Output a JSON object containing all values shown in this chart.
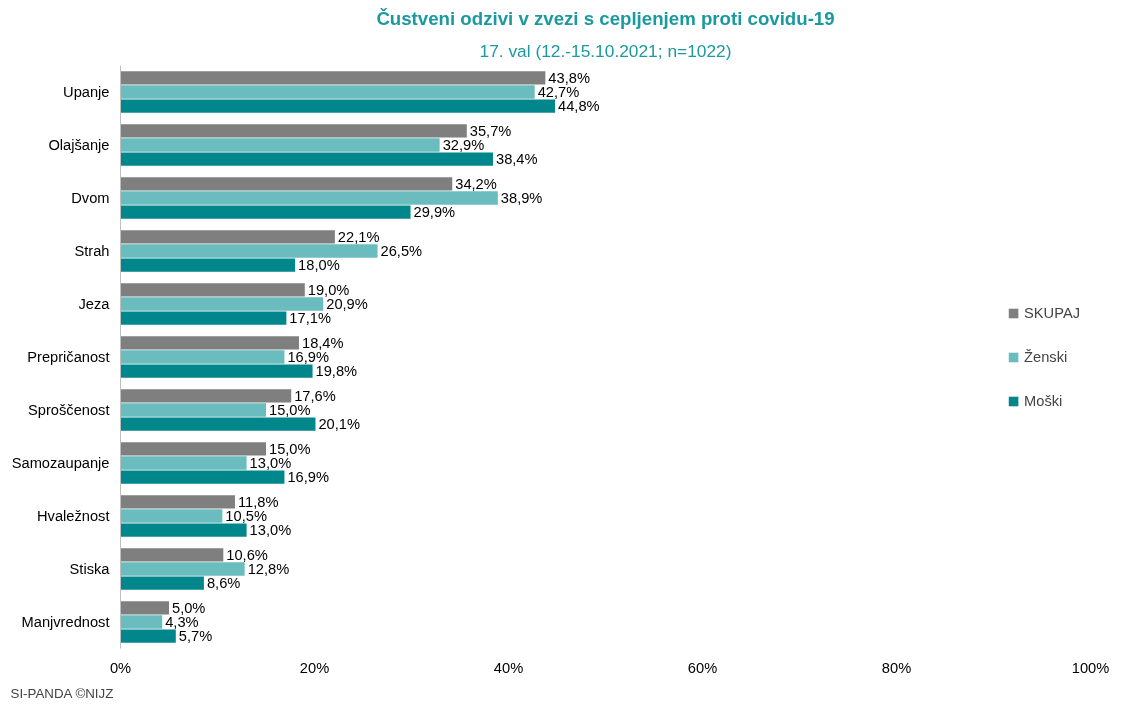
{
  "chart_data": {
    "type": "bar",
    "orientation": "horizontal",
    "title": "Čustveni odzivi v zvezi s cepljenjem proti covidu-19",
    "subtitle": "17. val (12.-15.10.2021; n=1022)",
    "annotations": [
      "SI-PANDA ©NIJZ"
    ],
    "categories": [
      "Upanje",
      "Olajšanje",
      "Dvom",
      "Strah",
      "Jeza",
      "Prepričanost",
      "Sproščenost",
      "Samozaupanje",
      "Hvaležnost",
      "Stiska",
      "Manjvrednost"
    ],
    "series": [
      {
        "name": "SKUPAJ",
        "color": "#7f7f7f",
        "values": [
          43.8,
          35.7,
          34.2,
          22.1,
          19.0,
          18.4,
          17.6,
          15.0,
          11.8,
          10.6,
          5.0
        ],
        "value_labels": [
          "43,8%",
          "35,7%",
          "34,2%",
          "22,1%",
          "19,0%",
          "18,4%",
          "17,6%",
          "15,0%",
          "11,8%",
          "10,6%",
          "5,0%"
        ]
      },
      {
        "name": "Ženski",
        "color": "#6bbcbf",
        "values": [
          42.7,
          32.9,
          38.9,
          26.5,
          20.9,
          16.9,
          15.0,
          13.0,
          10.5,
          12.8,
          4.3
        ],
        "value_labels": [
          "42,7%",
          "32,9%",
          "38,9%",
          "26,5%",
          "20,9%",
          "16,9%",
          "15,0%",
          "13,0%",
          "10,5%",
          "12,8%",
          "4,3%"
        ]
      },
      {
        "name": "Moški",
        "color": "#00868b",
        "values": [
          44.8,
          38.4,
          29.9,
          18.0,
          17.1,
          19.8,
          20.1,
          16.9,
          13.0,
          8.6,
          5.7
        ],
        "value_labels": [
          "44,8%",
          "38,4%",
          "29,9%",
          "18,0%",
          "17,1%",
          "19,8%",
          "20,1%",
          "16,9%",
          "13,0%",
          "8,6%",
          "5,7%"
        ]
      }
    ],
    "xlim": [
      0,
      100
    ],
    "xticks": [
      {
        "value": 0,
        "label": "0%"
      },
      {
        "value": 20,
        "label": "20%"
      },
      {
        "value": 40,
        "label": "40%"
      },
      {
        "value": 60,
        "label": "60%"
      },
      {
        "value": 80,
        "label": "80%"
      },
      {
        "value": 100,
        "label": "100%"
      }
    ],
    "grid": false,
    "legend": "right"
  }
}
